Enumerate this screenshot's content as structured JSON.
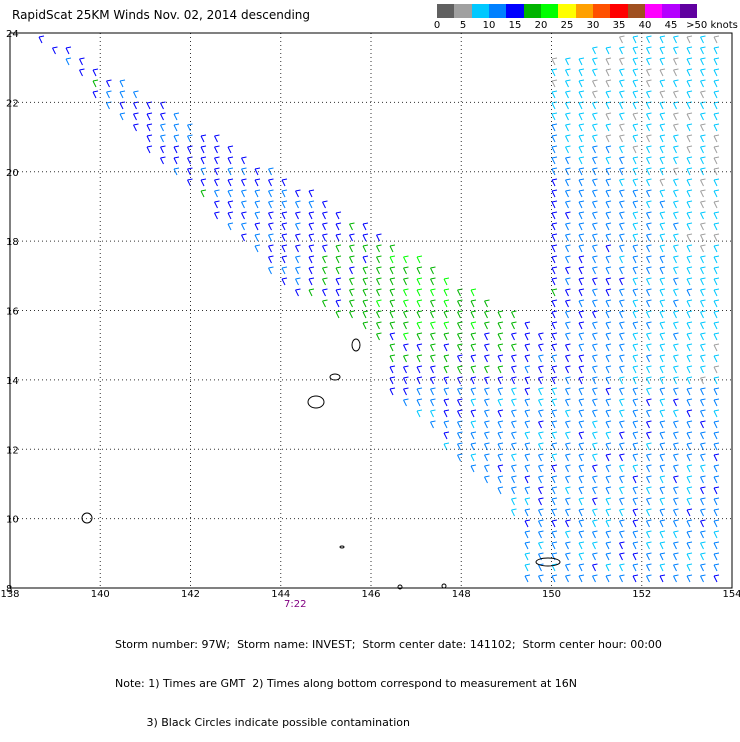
{
  "title": "RapidScat 25KM Winds Nov. 02, 2014 descending",
  "legend": {
    "colors": [
      "#606060",
      "#a0a0a0",
      "#00c8ff",
      "#0080ff",
      "#0000ff",
      "#00b400",
      "#00ff00",
      "#ffff00",
      "#ffa000",
      "#ff5000",
      "#ff0000",
      "#a05020",
      "#ff00ff",
      "#b400ff",
      "#6000a0"
    ],
    "labels": [
      "0",
      "5",
      "10",
      "15",
      "20",
      "25",
      "30",
      "35",
      "40",
      "45",
      ">50 knots"
    ],
    "unit": "knots"
  },
  "map": {
    "lat_ticks": [
      "24",
      "22",
      "20",
      "18",
      "16",
      "14",
      "12",
      "10",
      "8"
    ],
    "lon_ticks": [
      "138",
      "140",
      "142",
      "144",
      "146",
      "148",
      "150",
      "152",
      "154"
    ],
    "lat_range": [
      8,
      24
    ],
    "lon_range": [
      138,
      154
    ],
    "grid": true
  },
  "time_label": "7:22",
  "footer": {
    "line1": "Storm number: 97W;  Storm name: INVEST;  Storm center date: 141102;  Storm center hour: 00:00",
    "line2": "Note: 1) Times are GMT  2) Times along bottom correspond to measurement at 16N",
    "line3": "         3) Black Circles indicate possible contamination"
  }
}
